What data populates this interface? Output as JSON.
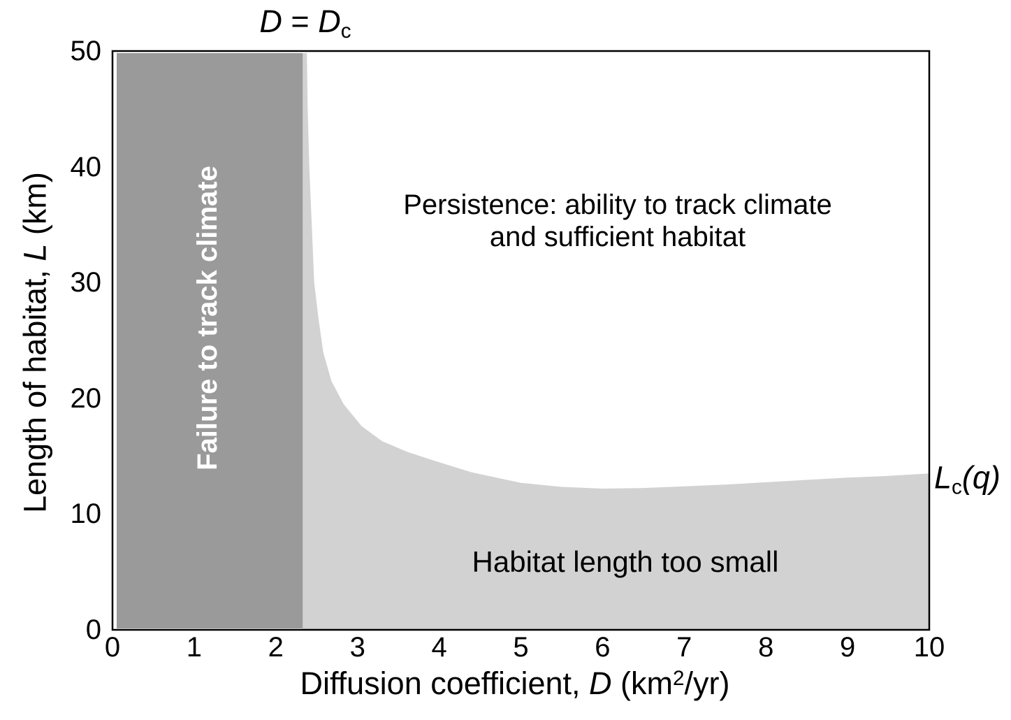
{
  "colors": {
    "background": "#ffffff",
    "axis_line": "#000000",
    "region_failure_fill": "#9a9a9a",
    "region_habitat_small_fill": "#d2d2d2",
    "region_persistence_fill": "#ffffff",
    "failure_label_text": "#ffffff",
    "label_text": "#000000"
  },
  "labels": {
    "dc_line": {
      "var1": "D",
      "eq": " = ",
      "var2": "D",
      "sub": "c"
    },
    "lc_curve": {
      "base": "L",
      "sub": "c",
      "args": "(q)"
    },
    "x_axis": {
      "text": "Diffusion coefficient, ",
      "symbol": "D",
      "unit_open": " (km",
      "unit_sup": "2",
      "unit_close": "/yr)"
    },
    "y_axis": {
      "text": "Length of habitat, ",
      "symbol": "L",
      "unit": " (km)"
    },
    "region_persistence_line1": "Persistence: ability to track climate",
    "region_persistence_line2": "and sufficient habitat",
    "region_failure": "Failure to track climate",
    "region_too_small": "Habitat length too small"
  },
  "axes": {
    "x_ticks": [
      "0",
      "1",
      "2",
      "3",
      "4",
      "5",
      "6",
      "7",
      "8",
      "9",
      "10"
    ],
    "y_ticks": [
      "0",
      "10",
      "20",
      "30",
      "40",
      "50"
    ]
  },
  "chart_data": {
    "type": "area",
    "title": "",
    "xlabel": "Diffusion coefficient, D (km²/yr)",
    "ylabel": "Length of habitat, L (km)",
    "xlim": [
      0,
      10
    ],
    "ylim": [
      0,
      50
    ],
    "x_tick_values": [
      0,
      1,
      2,
      3,
      4,
      5,
      6,
      7,
      8,
      9,
      10
    ],
    "y_tick_values": [
      0,
      10,
      20,
      30,
      40,
      50
    ],
    "grid": false,
    "legend": "none",
    "critical_diffusion_Dc": 2.33,
    "annotations": [
      "D = Dc",
      "Lc(q)"
    ],
    "regions": [
      {
        "name": "Failure to track climate",
        "condition": "D < Dc",
        "fill": "#9a9a9a"
      },
      {
        "name": "Persistence: ability to track climate and sufficient habitat",
        "condition": "D > Dc and L > Lc(q)",
        "fill": "#ffffff"
      },
      {
        "name": "Habitat length too small",
        "condition": "D > Dc and L < Lc(q)",
        "fill": "#d2d2d2"
      }
    ],
    "series": [
      {
        "name": "Lc(q) critical habitat length boundary",
        "x": [
          2.38,
          2.39,
          2.41,
          2.44,
          2.47,
          2.52,
          2.58,
          2.68,
          2.83,
          3.05,
          3.3,
          3.6,
          3.9,
          4.4,
          5.0,
          5.5,
          6.0,
          6.5,
          7.0,
          7.5,
          8.0,
          8.5,
          9.0,
          9.5,
          10.0
        ],
        "y": [
          50,
          45,
          40,
          35,
          30,
          27,
          24,
          21.5,
          19.5,
          17.6,
          16.3,
          15.4,
          14.7,
          13.6,
          12.7,
          12.35,
          12.2,
          12.25,
          12.4,
          12.55,
          12.75,
          12.95,
          13.15,
          13.3,
          13.5
        ]
      }
    ]
  }
}
